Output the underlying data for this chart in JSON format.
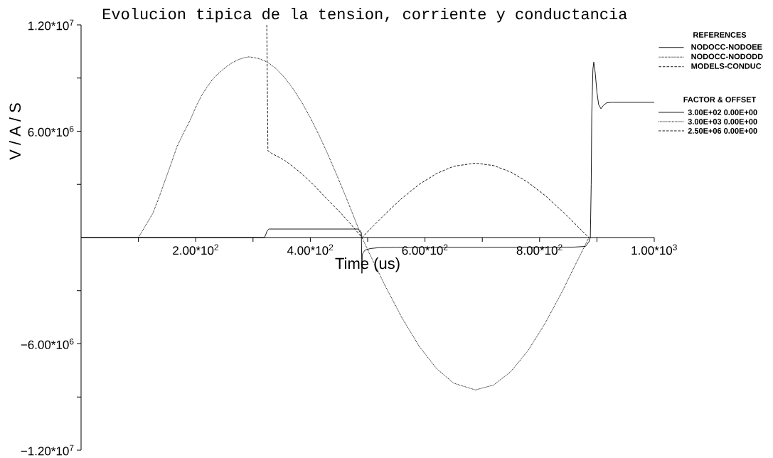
{
  "chart_data": {
    "type": "line",
    "title": "Evolucion tipica de la tension, corriente y conductancia",
    "xlabel": "Time (us)",
    "ylabel": "V / A / S",
    "legend_title": "REFERENCES",
    "legend": "top right",
    "xlim": [
      0,
      1000
    ],
    "ylim": [
      -12000000,
      12000000
    ],
    "xticks": [
      {
        "value": 100,
        "label": null
      },
      {
        "value": 200,
        "label": "2.00*10$^{2}$"
      },
      {
        "value": 300,
        "label": null
      },
      {
        "value": 400,
        "label": "4.00*10$^{2}$"
      },
      {
        "value": 500,
        "label": null
      },
      {
        "value": 600,
        "label": "6.00*10$^{2}$"
      },
      {
        "value": 700,
        "label": null
      },
      {
        "value": 800,
        "label": "8.00*10$^{2}$"
      },
      {
        "value": 900,
        "label": null
      },
      {
        "value": 1000,
        "label": "1.00*10$^{3}$"
      }
    ],
    "yticks": [
      {
        "value": -12000000,
        "label": "−1.20*10$^{7}$"
      },
      {
        "value": -9000000,
        "label": null
      },
      {
        "value": -6000000,
        "label": "−6.00*10$^{6}$"
      },
      {
        "value": -3000000,
        "label": null
      },
      {
        "value": 3000000,
        "label": null
      },
      {
        "value": 6000000,
        "label": "6.00*10$^{6}$"
      },
      {
        "value": 9000000,
        "label": null
      },
      {
        "value": 12000000,
        "label": "1.20*10$^{7}$"
      }
    ],
    "annotations": [
      "FACTOR & OFFSET",
      "3.00E+02 0.00E+00",
      "3.00E+03 0.00E+00",
      "2.50E+06 0.00E+00"
    ],
    "series": [
      {
        "name": "NODOCC-NODOEE",
        "color": "#000000",
        "line_style": "solid",
        "x": [
          0,
          320,
          322,
          325,
          328,
          483,
          486,
          489,
          490,
          490.5,
          492,
          496,
          505,
          520,
          550,
          700,
          860,
          880,
          886,
          888.5,
          890,
          891,
          893,
          894.5,
          897,
          900,
          903,
          907,
          911,
          917,
          925,
          1000
        ],
        "values": [
          0,
          0,
          150000,
          400000,
          480000,
          480000,
          420000,
          280000,
          -2020000,
          -1000000,
          -850000,
          -700000,
          -620000,
          -570000,
          -550000,
          -550000,
          -540000,
          -500000,
          -250000,
          0,
          3000000,
          7000000,
          9500000,
          9900000,
          9300000,
          8200000,
          7500000,
          7270000,
          7450000,
          7600000,
          7630000,
          7630000
        ]
      },
      {
        "name": "NODOCC-NODODD",
        "color": "#000000",
        "line_style": "dotted",
        "x": [
          100,
          112,
          125,
          137,
          148,
          158,
          167,
          178,
          190,
          200,
          210,
          220,
          230,
          241,
          252,
          263,
          275,
          285,
          293,
          302,
          310,
          318,
          325,
          340,
          355,
          370,
          385,
          400,
          415,
          430,
          445,
          460,
          475,
          490,
          510,
          530,
          560,
          590,
          620,
          650,
          688,
          720,
          750,
          780,
          810,
          840,
          860,
          886
        ],
        "values": [
          0,
          650000,
          1350000,
          2350000,
          3350000,
          4250000,
          5100000,
          5850000,
          6600000,
          7350000,
          8000000,
          8500000,
          8950000,
          9300000,
          9600000,
          9850000,
          10050000,
          10150000,
          10200000,
          10150000,
          10100000,
          10000000,
          9900000,
          9540000,
          9030000,
          8390000,
          7630000,
          6760000,
          5790000,
          4740000,
          3610000,
          2450000,
          1250000,
          0,
          -1360000,
          -2690000,
          -4540000,
          -6140000,
          -7390000,
          -8220000,
          -8600000,
          -8320000,
          -7560000,
          -6370000,
          -4820000,
          -3010000,
          -1690000,
          0
        ]
      },
      {
        "name": "MODELS-CONDUC",
        "color": "#000000",
        "line_style": "dashed",
        "x": [
          324,
          326,
          332,
          355,
          370,
          385,
          400,
          415,
          430,
          442,
          454,
          466,
          478,
          490,
          510,
          530,
          560,
          590,
          620,
          650,
          688,
          720,
          750,
          780,
          810,
          840,
          860,
          886
        ],
        "values": [
          12000000,
          4900000,
          4760000,
          4360000,
          4000000,
          3600000,
          3150000,
          2650000,
          2150000,
          1750000,
          1350000,
          920000,
          470000,
          0,
          660000,
          1310000,
          2220000,
          3000000,
          3610000,
          4020000,
          4200000,
          4060000,
          3690000,
          3110000,
          2360000,
          1470000,
          830000,
          0
        ]
      }
    ]
  }
}
